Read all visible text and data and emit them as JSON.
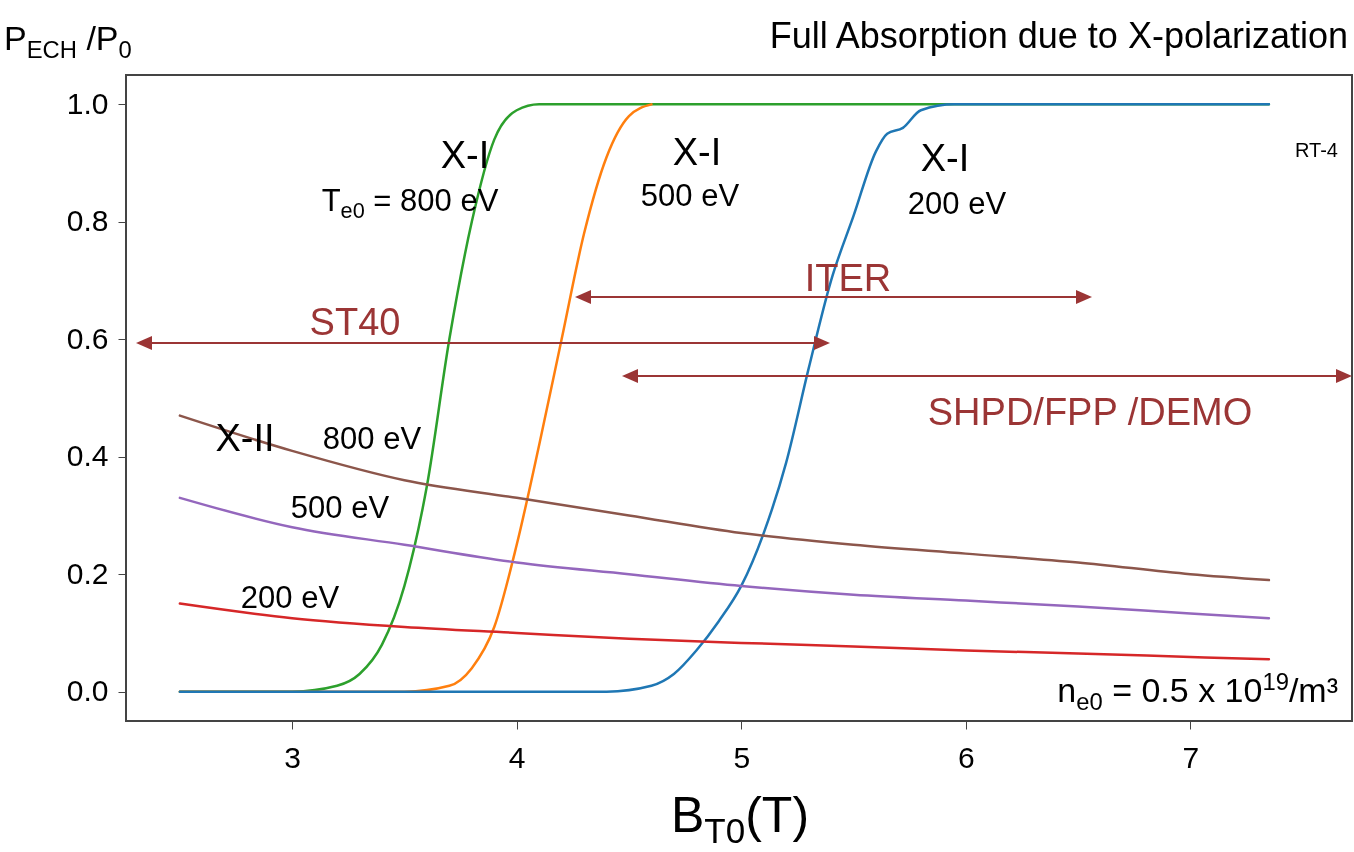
{
  "chart_data": {
    "type": "line",
    "title": "Full Absorption due to X-polarization",
    "xlabel": "B$_{T0}$(T)",
    "ylabel": "P$_{ECH}$ /P$_{0}$",
    "xlim": [
      2.26,
      7.72
    ],
    "ylim": [
      -0.05,
      1.05
    ],
    "xticks": [
      3,
      4,
      5,
      6,
      7
    ],
    "yticks": [
      {
        "value": 0,
        "label": "0.0"
      },
      0.2,
      0.4,
      0.6,
      0.8,
      {
        "value": 1,
        "label": "1.0"
      }
    ],
    "grid": false,
    "line_style": "solid",
    "series": [
      {
        "color": "#2ca02c",
        "x": [
          2.5,
          3.0,
          3.2,
          3.3,
          3.4,
          3.5,
          3.6,
          3.7,
          3.8,
          3.9,
          4.0,
          4.1,
          7.35
        ],
        "values": [
          0,
          0,
          0.01,
          0.03,
          0.08,
          0.18,
          0.35,
          0.6,
          0.8,
          0.94,
          0.99,
          1,
          1
        ]
      },
      {
        "color": "#ff7f0e",
        "x": [
          2.5,
          3.5,
          3.7,
          3.8,
          3.9,
          4.0,
          4.1,
          4.2,
          4.3,
          4.4,
          4.5,
          4.6
        ],
        "values": [
          0,
          0,
          0.01,
          0.04,
          0.11,
          0.25,
          0.42,
          0.6,
          0.78,
          0.91,
          0.98,
          1
        ]
      },
      {
        "color": "#1f77b4",
        "x": [
          2.5,
          4.4,
          4.6,
          4.7,
          4.8,
          4.9,
          5.0,
          5.1,
          5.2,
          5.3,
          5.4,
          5.5,
          5.6,
          5.65,
          5.72,
          5.8,
          5.95,
          7.35
        ],
        "values": [
          0,
          0,
          0.01,
          0.03,
          0.07,
          0.12,
          0.18,
          0.27,
          0.39,
          0.55,
          0.7,
          0.81,
          0.92,
          0.95,
          0.96,
          0.99,
          1,
          1
        ]
      },
      {
        "color": "#8c564b",
        "x": [
          2.5,
          3.0,
          3.5,
          4.0,
          4.5,
          5.0,
          5.5,
          6.0,
          6.5,
          7.0,
          7.35
        ],
        "values": [
          0.47,
          0.41,
          0.36,
          0.33,
          0.3,
          0.27,
          0.25,
          0.235,
          0.22,
          0.2,
          0.19
        ]
      },
      {
        "color": "#9467bd",
        "x": [
          2.5,
          3.0,
          3.5,
          4.0,
          4.5,
          5.0,
          5.5,
          6.0,
          6.5,
          7.0,
          7.35
        ],
        "values": [
          0.33,
          0.28,
          0.25,
          0.22,
          0.2,
          0.18,
          0.165,
          0.155,
          0.145,
          0.133,
          0.125
        ]
      },
      {
        "color": "#d62728",
        "x": [
          2.5,
          3.0,
          3.5,
          4.0,
          4.5,
          5.0,
          5.5,
          6.0,
          6.5,
          7.0,
          7.35
        ],
        "values": [
          0.15,
          0.125,
          0.11,
          0.1,
          0.09,
          0.083,
          0.077,
          0.07,
          0.065,
          0.059,
          0.055
        ]
      }
    ],
    "annotations": [
      "ST40",
      "ITER",
      "SHPD/FPP /DEMO",
      "X-I",
      "T$_{e0}$ = 800 eV",
      "X-I",
      "500 eV",
      "X-I",
      "200 eV",
      "X-II",
      "800 eV",
      "500 eV",
      "200 eV",
      "RT-4",
      "n$_{e0}$ = 0.5 x 10$^{19}$/m³"
    ]
  }
}
